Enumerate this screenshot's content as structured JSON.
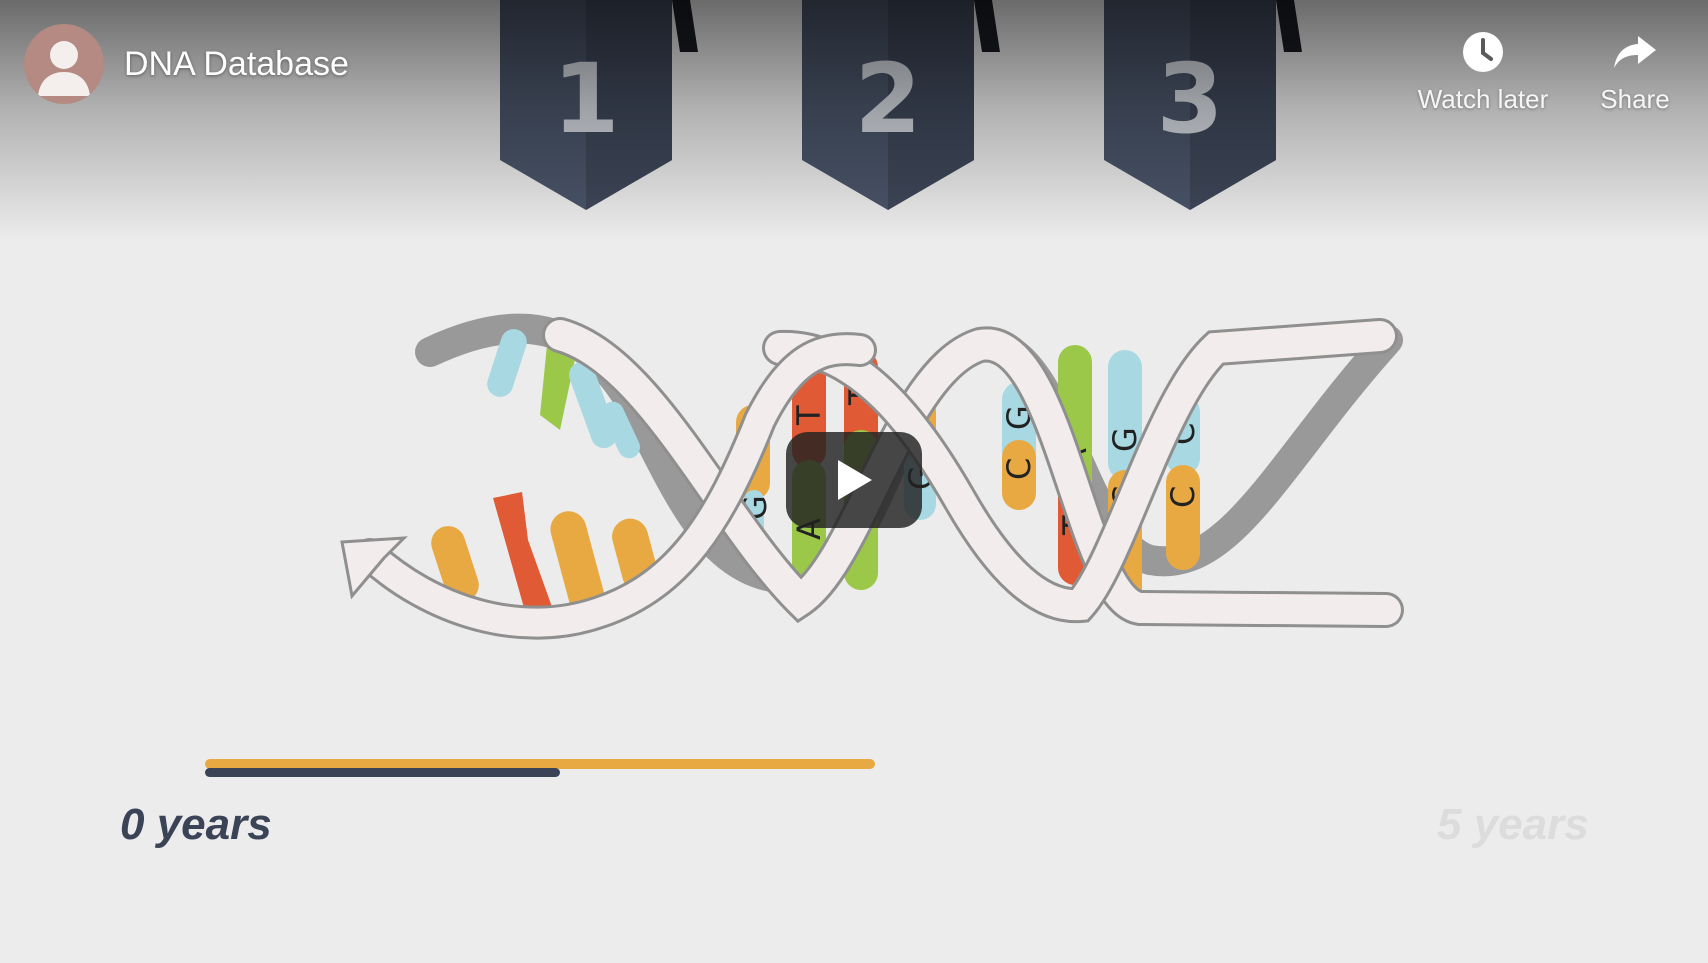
{
  "video": {
    "title": "DNA Database",
    "channel_avatar_icon": "avatar-icon"
  },
  "actions": {
    "watch_later": {
      "label": "Watch later",
      "icon": "clock-icon"
    },
    "share": {
      "label": "Share",
      "icon": "share-arrow-icon"
    }
  },
  "content": {
    "steps": [
      "1",
      "2",
      "3"
    ],
    "dna_letters": [
      "C",
      "G",
      "T",
      "A",
      "T",
      "A",
      "G",
      "C",
      "G",
      "C",
      "T",
      "A",
      "G",
      "C",
      "C",
      "C"
    ],
    "play_icon": "play-icon",
    "timeline": {
      "start_label": "0 years",
      "end_label": "5 years",
      "progress": 0.53
    }
  },
  "colors": {
    "orange": "#e8a943",
    "red": "#e05a35",
    "green": "#9cc84a",
    "blue": "#a8d8e2",
    "navy": "#3b4457",
    "banner": "#4a5569"
  }
}
